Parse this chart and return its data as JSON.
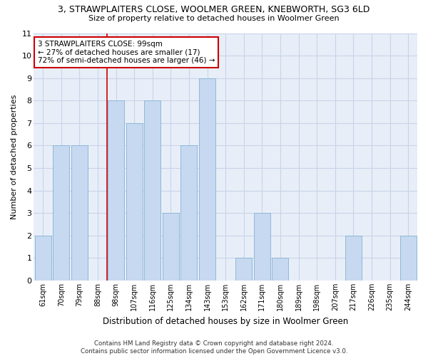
{
  "title": "3, STRAWPLAITERS CLOSE, WOOLMER GREEN, KNEBWORTH, SG3 6LD",
  "subtitle": "Size of property relative to detached houses in Woolmer Green",
  "xlabel": "Distribution of detached houses by size in Woolmer Green",
  "ylabel": "Number of detached properties",
  "categories": [
    "61sqm",
    "70sqm",
    "79sqm",
    "88sqm",
    "98sqm",
    "107sqm",
    "116sqm",
    "125sqm",
    "134sqm",
    "143sqm",
    "153sqm",
    "162sqm",
    "171sqm",
    "180sqm",
    "189sqm",
    "198sqm",
    "207sqm",
    "217sqm",
    "226sqm",
    "235sqm",
    "244sqm"
  ],
  "values": [
    2,
    6,
    6,
    0,
    8,
    7,
    8,
    3,
    6,
    9,
    0,
    1,
    3,
    1,
    0,
    0,
    0,
    2,
    0,
    0,
    2
  ],
  "bar_color": "#c6d9f0",
  "bar_edge_color": "#8fb8d8",
  "highlight_index": 4,
  "highlight_line_color": "#cc0000",
  "annotation_box_color": "#cc0000",
  "annotation_text": "3 STRAWPLAITERS CLOSE: 99sqm\n← 27% of detached houses are smaller (17)\n72% of semi-detached houses are larger (46) →",
  "ylim": [
    0,
    11
  ],
  "yticks": [
    0,
    1,
    2,
    3,
    4,
    5,
    6,
    7,
    8,
    9,
    10,
    11
  ],
  "grid_color": "#c8d4e8",
  "background_color": "#e8eef8",
  "footer": "Contains HM Land Registry data © Crown copyright and database right 2024.\nContains public sector information licensed under the Open Government Licence v3.0."
}
